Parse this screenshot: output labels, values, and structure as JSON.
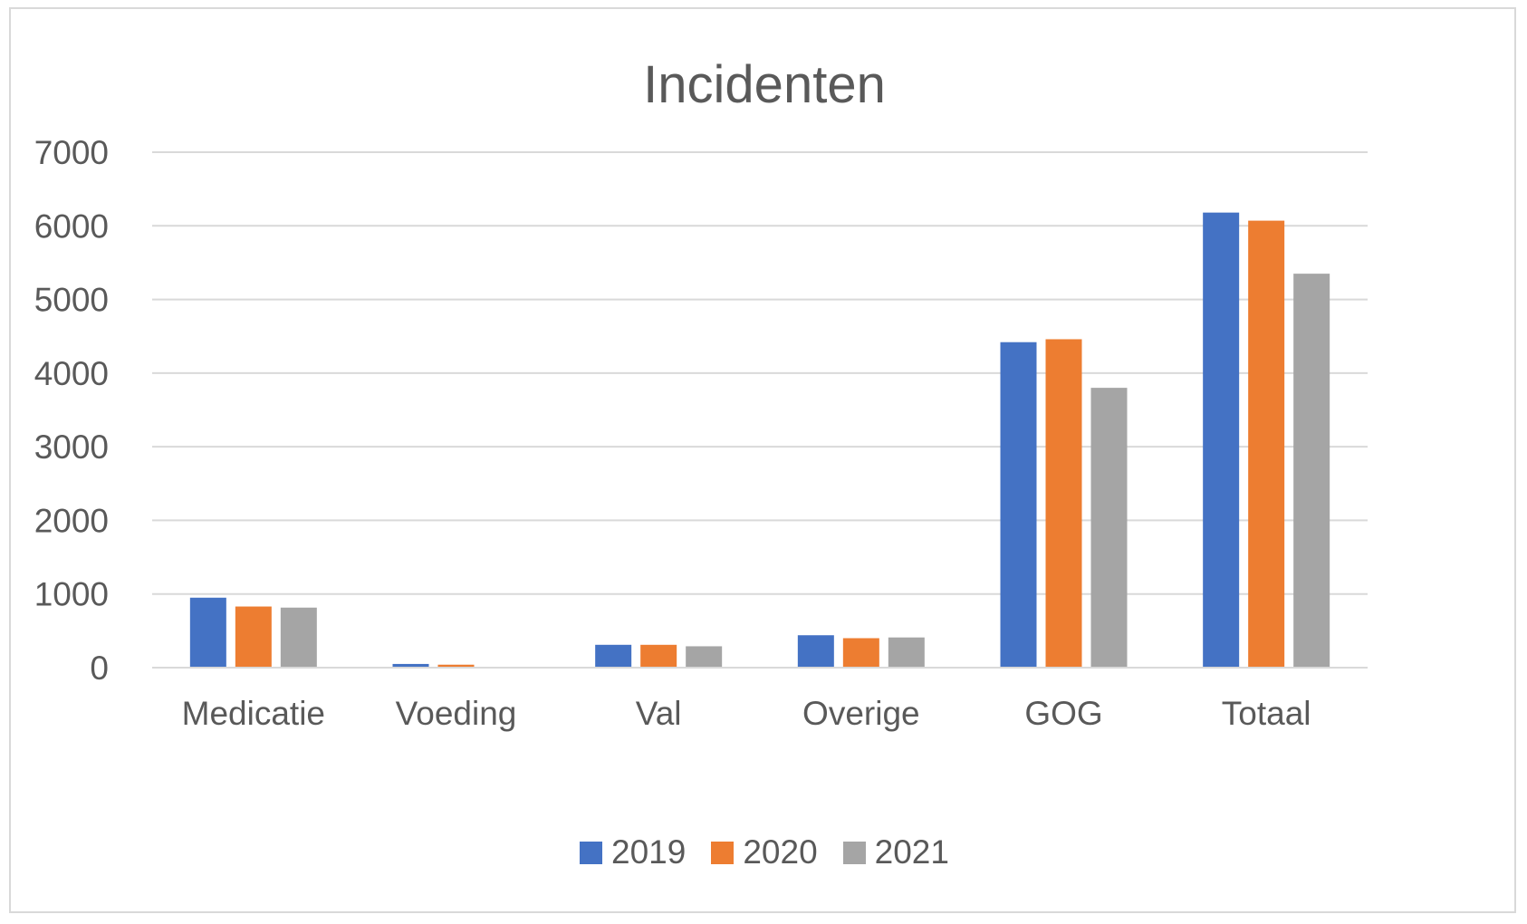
{
  "chart_data": {
    "type": "bar",
    "title": "Incidenten",
    "xlabel": "",
    "ylabel": "",
    "categories": [
      "Medicatie",
      "Voeding",
      "Val",
      "Overige",
      "GOG",
      "Totaal"
    ],
    "series": [
      {
        "name": "2019",
        "color": "#4472c4",
        "values": [
          950,
          50,
          310,
          440,
          4420,
          6180
        ]
      },
      {
        "name": "2020",
        "color": "#ed7d31",
        "values": [
          830,
          40,
          310,
          400,
          4460,
          6070
        ]
      },
      {
        "name": "2021",
        "color": "#a5a5a5",
        "values": [
          815,
          5,
          290,
          410,
          3800,
          5350
        ]
      }
    ],
    "ylim": [
      0,
      7000
    ],
    "yticks": [
      "0",
      "1000",
      "2000",
      "3000",
      "4000",
      "5000",
      "6000",
      "7000"
    ],
    "grid": true,
    "legend_position": "bottom"
  }
}
